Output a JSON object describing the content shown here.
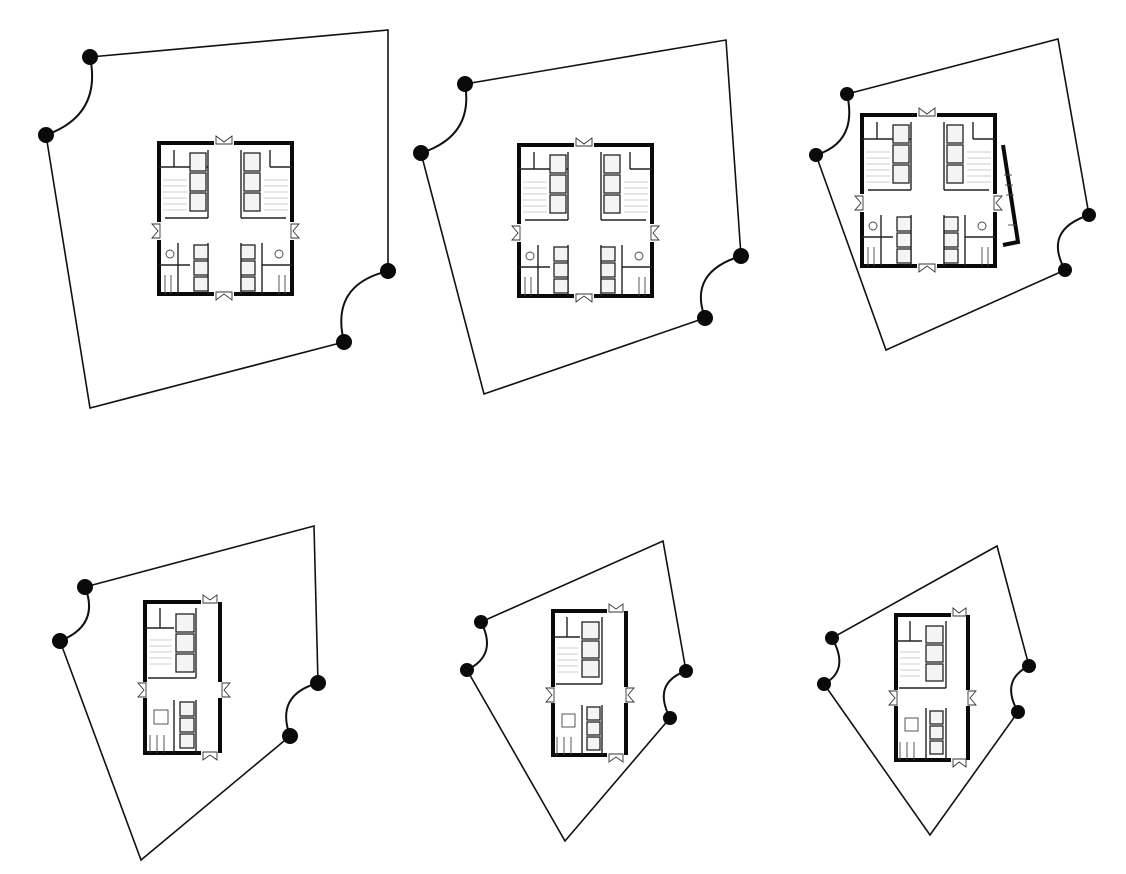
{
  "drawing": {
    "type": "floor-plate-sequence",
    "plan_count": 6,
    "colors": {
      "background": "#ffffff",
      "linework": "#111111",
      "column": "#0a0a0a"
    }
  }
}
